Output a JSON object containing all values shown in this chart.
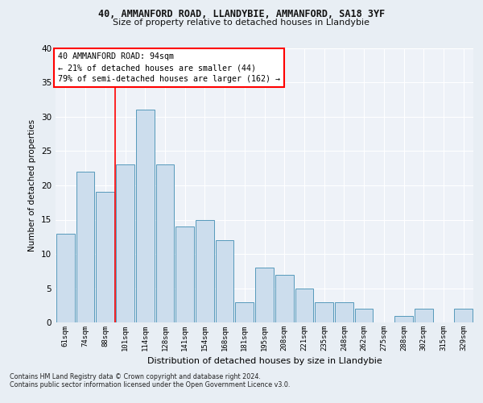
{
  "title_line1": "40, AMMANFORD ROAD, LLANDYBIE, AMMANFORD, SA18 3YF",
  "title_line2": "Size of property relative to detached houses in Llandybie",
  "xlabel": "Distribution of detached houses by size in Llandybie",
  "ylabel": "Number of detached properties",
  "categories": [
    "61sqm",
    "74sqm",
    "88sqm",
    "101sqm",
    "114sqm",
    "128sqm",
    "141sqm",
    "154sqm",
    "168sqm",
    "181sqm",
    "195sqm",
    "208sqm",
    "221sqm",
    "235sqm",
    "248sqm",
    "262sqm",
    "275sqm",
    "288sqm",
    "302sqm",
    "315sqm",
    "329sqm"
  ],
  "values": [
    13,
    22,
    19,
    23,
    31,
    23,
    14,
    15,
    12,
    3,
    8,
    7,
    5,
    3,
    3,
    2,
    0,
    1,
    2,
    0,
    2
  ],
  "bar_color": "#ccdded",
  "bar_edge_color": "#5599bb",
  "ylim": [
    0,
    40
  ],
  "yticks": [
    0,
    5,
    10,
    15,
    20,
    25,
    30,
    35,
    40
  ],
  "property_line_x": 2.5,
  "annotation_title": "40 AMMANFORD ROAD: 94sqm",
  "annotation_line1": "← 21% of detached houses are smaller (44)",
  "annotation_line2": "79% of semi-detached houses are larger (162) →",
  "annotation_box_color": "white",
  "annotation_box_edge": "red",
  "footer_line1": "Contains HM Land Registry data © Crown copyright and database right 2024.",
  "footer_line2": "Contains public sector information licensed under the Open Government Licence v3.0.",
  "bg_color": "#e8eef4",
  "plot_bg_color": "#eef2f8"
}
